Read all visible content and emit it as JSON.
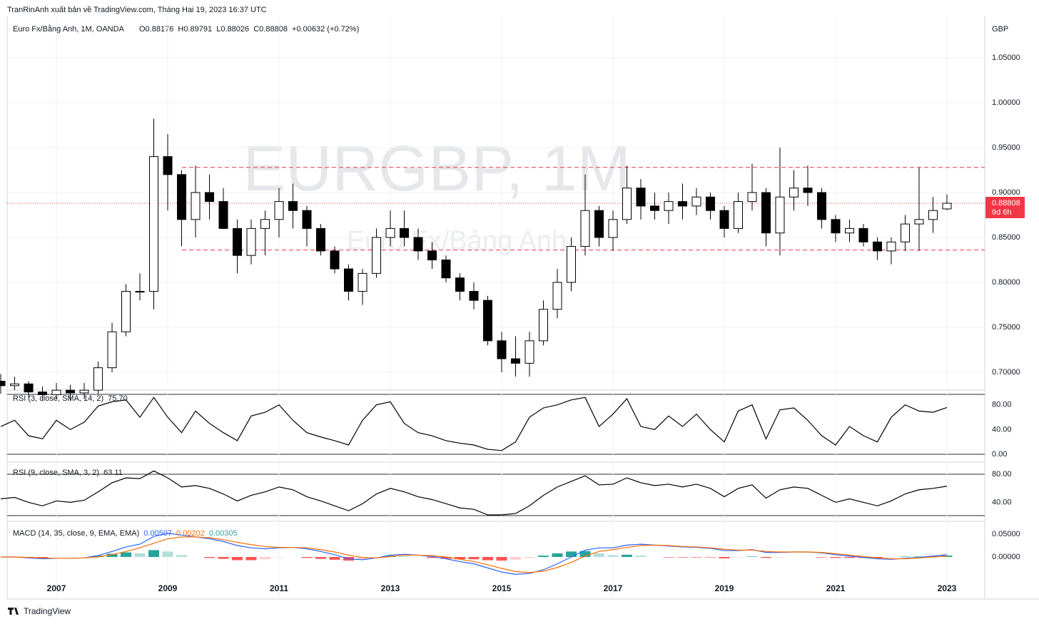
{
  "header": {
    "published": "TranRinAnh xuất bản về TradingView.com, Tháng Hai 19, 2023 16:37 UTC",
    "symbol": "Euro Fx/Bằng Anh, 1M, OANDA",
    "ohlc": "O0.88176  H0.89791  L0.88026  C0.88808  +0.00632 (+0.72%)",
    "watermark": "EURGBP, 1M",
    "watermark_sub": "Euro Fx/Bảng Anh",
    "currency": "GBP",
    "countdown": "9d 6h",
    "brand": "TradingView"
  },
  "chart_data": [
    {
      "type": "candlestick",
      "name": "EURGBP",
      "up_color": "#ffffff",
      "down_color": "#000000",
      "edge_color": "#000000",
      "x": [
        2006.0,
        2006.25,
        2006.5,
        2006.75,
        2007.0,
        2007.25,
        2007.5,
        2007.75,
        2008.0,
        2008.25,
        2008.5,
        2008.75,
        2009.0,
        2009.25,
        2009.5,
        2009.75,
        2010.0,
        2010.25,
        2010.5,
        2010.75,
        2011.0,
        2011.25,
        2011.5,
        2011.75,
        2012.0,
        2012.25,
        2012.5,
        2012.75,
        2013.0,
        2013.25,
        2013.5,
        2013.75,
        2014.0,
        2014.25,
        2014.5,
        2014.75,
        2015.0,
        2015.25,
        2015.5,
        2015.75,
        2016.0,
        2016.25,
        2016.5,
        2016.75,
        2017.0,
        2017.25,
        2017.5,
        2017.75,
        2018.0,
        2018.25,
        2018.5,
        2018.75,
        2019.0,
        2019.25,
        2019.5,
        2019.75,
        2020.0,
        2020.25,
        2020.5,
        2020.75,
        2021.0,
        2021.25,
        2021.5,
        2021.75,
        2022.0,
        2022.25,
        2022.5,
        2022.75,
        2023.0
      ],
      "open": [
        0.69,
        0.685,
        0.687,
        0.678,
        0.675,
        0.68,
        0.677,
        0.68,
        0.705,
        0.745,
        0.79,
        0.79,
        0.94,
        0.92,
        0.87,
        0.9,
        0.89,
        0.86,
        0.83,
        0.86,
        0.87,
        0.89,
        0.88,
        0.86,
        0.835,
        0.815,
        0.79,
        0.81,
        0.85,
        0.86,
        0.85,
        0.835,
        0.825,
        0.805,
        0.79,
        0.78,
        0.735,
        0.715,
        0.71,
        0.735,
        0.77,
        0.8,
        0.84,
        0.88,
        0.85,
        0.87,
        0.905,
        0.885,
        0.88,
        0.89,
        0.885,
        0.895,
        0.88,
        0.86,
        0.89,
        0.9,
        0.855,
        0.895,
        0.905,
        0.9,
        0.87,
        0.855,
        0.86,
        0.845,
        0.835,
        0.845,
        0.865,
        0.87,
        0.88176
      ],
      "high": [
        0.698,
        0.695,
        0.69,
        0.684,
        0.688,
        0.686,
        0.688,
        0.712,
        0.755,
        0.798,
        0.81,
        0.982,
        0.965,
        0.925,
        0.93,
        0.92,
        0.905,
        0.87,
        0.87,
        0.88,
        0.905,
        0.91,
        0.885,
        0.865,
        0.84,
        0.82,
        0.815,
        0.86,
        0.88,
        0.88,
        0.86,
        0.845,
        0.83,
        0.81,
        0.8,
        0.785,
        0.745,
        0.74,
        0.745,
        0.78,
        0.815,
        0.85,
        0.92,
        0.885,
        0.88,
        0.93,
        0.915,
        0.9,
        0.9,
        0.91,
        0.905,
        0.9,
        0.885,
        0.9,
        0.932,
        0.905,
        0.95,
        0.925,
        0.93,
        0.905,
        0.875,
        0.87,
        0.865,
        0.85,
        0.85,
        0.875,
        0.928,
        0.895,
        0.89791
      ],
      "low": [
        0.676,
        0.68,
        0.672,
        0.668,
        0.67,
        0.668,
        0.67,
        0.676,
        0.7,
        0.74,
        0.78,
        0.77,
        0.88,
        0.84,
        0.85,
        0.87,
        0.86,
        0.81,
        0.82,
        0.83,
        0.85,
        0.86,
        0.84,
        0.83,
        0.81,
        0.78,
        0.775,
        0.805,
        0.84,
        0.84,
        0.825,
        0.815,
        0.8,
        0.78,
        0.77,
        0.73,
        0.7,
        0.695,
        0.695,
        0.73,
        0.76,
        0.79,
        0.83,
        0.84,
        0.835,
        0.865,
        0.87,
        0.87,
        0.865,
        0.87,
        0.875,
        0.87,
        0.85,
        0.855,
        0.88,
        0.84,
        0.83,
        0.88,
        0.885,
        0.86,
        0.845,
        0.845,
        0.84,
        0.825,
        0.82,
        0.835,
        0.835,
        0.855,
        0.88026
      ],
      "close": [
        0.685,
        0.687,
        0.678,
        0.675,
        0.68,
        0.677,
        0.68,
        0.705,
        0.745,
        0.79,
        0.79,
        0.94,
        0.92,
        0.87,
        0.9,
        0.89,
        0.86,
        0.83,
        0.86,
        0.87,
        0.89,
        0.88,
        0.86,
        0.835,
        0.815,
        0.79,
        0.81,
        0.85,
        0.86,
        0.85,
        0.835,
        0.825,
        0.805,
        0.79,
        0.78,
        0.735,
        0.715,
        0.71,
        0.735,
        0.77,
        0.8,
        0.84,
        0.88,
        0.85,
        0.87,
        0.905,
        0.885,
        0.88,
        0.89,
        0.885,
        0.895,
        0.88,
        0.86,
        0.89,
        0.9,
        0.855,
        0.895,
        0.905,
        0.9,
        0.87,
        0.855,
        0.86,
        0.845,
        0.835,
        0.845,
        0.865,
        0.87,
        0.88,
        0.88808
      ],
      "levels": [
        0.928,
        0.836
      ],
      "level_color": "#f23645",
      "price_line_color": "#f23645",
      "xlim": [
        2006.115,
        2023.68
      ],
      "xticks": [
        2007,
        2009,
        2011,
        2013,
        2015,
        2017,
        2019,
        2021,
        2023
      ],
      "ylim": [
        0.6817,
        1.0905
      ],
      "yticks": [
        {
          "value": 0.7,
          "label": "0.70000"
        },
        {
          "value": 0.75,
          "label": "0.75000"
        },
        {
          "value": 0.8,
          "label": "0.80000"
        },
        {
          "value": 0.85,
          "label": "0.85000"
        },
        {
          "value": 0.9,
          "label": "0.90000"
        },
        {
          "value": 0.95,
          "label": "0.95000"
        },
        {
          "value": 1.0,
          "label": "1.00000"
        },
        {
          "value": 1.05,
          "label": "1.05000"
        }
      ],
      "grid": true
    },
    {
      "type": "line",
      "legend": "RSI (3, close, SMA, 14, 2)",
      "last_label": "75.70",
      "color": "#000000",
      "values": [
        45,
        55,
        30,
        25,
        55,
        40,
        52,
        78,
        85,
        88,
        60,
        92,
        60,
        35,
        70,
        50,
        35,
        22,
        62,
        68,
        80,
        55,
        35,
        28,
        22,
        15,
        55,
        80,
        85,
        50,
        35,
        30,
        22,
        18,
        15,
        8,
        6,
        20,
        60,
        75,
        80,
        88,
        92,
        45,
        65,
        90,
        45,
        40,
        62,
        45,
        65,
        40,
        20,
        70,
        80,
        25,
        72,
        75,
        55,
        30,
        15,
        45,
        30,
        20,
        60,
        80,
        70,
        68,
        75.7
      ],
      "ylim": [
        0,
        97
      ],
      "yticks": [
        {
          "value": 0,
          "label": "0.00"
        },
        {
          "value": 40,
          "label": "40.00"
        },
        {
          "value": 80,
          "label": "80.00"
        }
      ]
    },
    {
      "type": "line",
      "legend": "RSI (9, close, SMA, 3, 2)",
      "last_label": "63.11",
      "color": "#000000",
      "values": [
        45,
        47,
        40,
        35,
        42,
        40,
        43,
        55,
        68,
        75,
        74,
        85,
        75,
        62,
        64,
        60,
        52,
        42,
        50,
        55,
        62,
        58,
        48,
        42,
        35,
        28,
        38,
        52,
        60,
        55,
        48,
        44,
        38,
        32,
        30,
        22,
        22,
        24,
        35,
        50,
        62,
        70,
        78,
        65,
        66,
        75,
        68,
        64,
        66,
        62,
        66,
        60,
        48,
        60,
        65,
        46,
        58,
        62,
        60,
        50,
        40,
        45,
        40,
        35,
        42,
        52,
        58,
        60,
        63.11
      ],
      "ylim": [
        21,
        88.4
      ],
      "yticks": [
        {
          "value": 40,
          "label": "40.00"
        },
        {
          "value": 80,
          "label": "80.00"
        }
      ]
    },
    {
      "type": "macd",
      "legend": "MACD (14, 35, close, 9, EMA, EMA)",
      "series": [
        {
          "name": "MACD",
          "color": "#2962ff",
          "last_label": "0.00507",
          "values": [
            0,
            0,
            -0.002,
            -0.004,
            -0.003,
            -0.003,
            -0.002,
            0.003,
            0.012,
            0.022,
            0.028,
            0.045,
            0.052,
            0.048,
            0.044,
            0.04,
            0.034,
            0.025,
            0.02,
            0.018,
            0.02,
            0.021,
            0.018,
            0.012,
            0.005,
            -0.004,
            -0.006,
            -0.002,
            0.004,
            0.006,
            0.004,
            0.001,
            -0.004,
            -0.01,
            -0.015,
            -0.024,
            -0.033,
            -0.038,
            -0.036,
            -0.028,
            -0.015,
            0,
            0.015,
            0.02,
            0.02,
            0.026,
            0.028,
            0.026,
            0.024,
            0.022,
            0.021,
            0.019,
            0.014,
            0.014,
            0.016,
            0.01,
            0.01,
            0.011,
            0.011,
            0.009,
            0.005,
            0.002,
            -0.001,
            -0.004,
            -0.005,
            -0.003,
            -0.001,
            0.002,
            0.00507
          ]
        },
        {
          "name": "Signal",
          "color": "#ff6d00",
          "last_label": "0.00202",
          "values": [
            0,
            0,
            -0.001,
            -0.002,
            -0.003,
            -0.003,
            -0.002,
            0,
            0.005,
            0.012,
            0.02,
            0.03,
            0.04,
            0.044,
            0.044,
            0.042,
            0.038,
            0.032,
            0.027,
            0.023,
            0.021,
            0.021,
            0.02,
            0.016,
            0.011,
            0.004,
            -0.001,
            -0.002,
            0.001,
            0.004,
            0.004,
            0.003,
            0,
            -0.005,
            -0.01,
            -0.017,
            -0.025,
            -0.032,
            -0.034,
            -0.031,
            -0.023,
            -0.012,
            0.002,
            0.012,
            0.016,
            0.021,
            0.025,
            0.026,
            0.025,
            0.023,
            0.022,
            0.02,
            0.017,
            0.015,
            0.015,
            0.012,
            0.011,
            0.011,
            0.011,
            0.01,
            0.007,
            0.004,
            0.001,
            -0.002,
            -0.004,
            -0.004,
            -0.002,
            0,
            0.00202
          ]
        },
        {
          "name": "Histogram",
          "last_label": "0.00305",
          "hist_colors": [
            "#26a69a",
            "#b2dfdb",
            "#ff5252",
            "#ffcdd2"
          ],
          "values": [
            0,
            0,
            -0.001,
            -0.002,
            0,
            0,
            0,
            0.003,
            0.007,
            0.01,
            0.008,
            0.015,
            0.012,
            0.004,
            0,
            -0.002,
            -0.004,
            -0.007,
            -0.007,
            -0.005,
            -0.001,
            0,
            -0.002,
            -0.004,
            -0.006,
            -0.008,
            -0.005,
            0,
            0.003,
            0.002,
            0,
            -0.002,
            -0.004,
            -0.005,
            -0.005,
            -0.007,
            -0.008,
            -0.006,
            -0.002,
            0.003,
            0.008,
            0.012,
            0.013,
            0.008,
            0.004,
            0.005,
            0.003,
            0,
            -0.001,
            -0.001,
            -0.001,
            -0.001,
            -0.003,
            -0.001,
            0.001,
            -0.002,
            -0.001,
            0,
            0,
            -0.001,
            -0.002,
            -0.002,
            -0.002,
            -0.002,
            -0.001,
            0.001,
            0.001,
            0.002,
            0.00305
          ]
        }
      ],
      "ylim": [
        -0.0484,
        0.075
      ],
      "yticks": [
        {
          "value": 0,
          "label": "0.00000"
        },
        {
          "value": 0.05,
          "label": "0.05000"
        }
      ]
    }
  ]
}
